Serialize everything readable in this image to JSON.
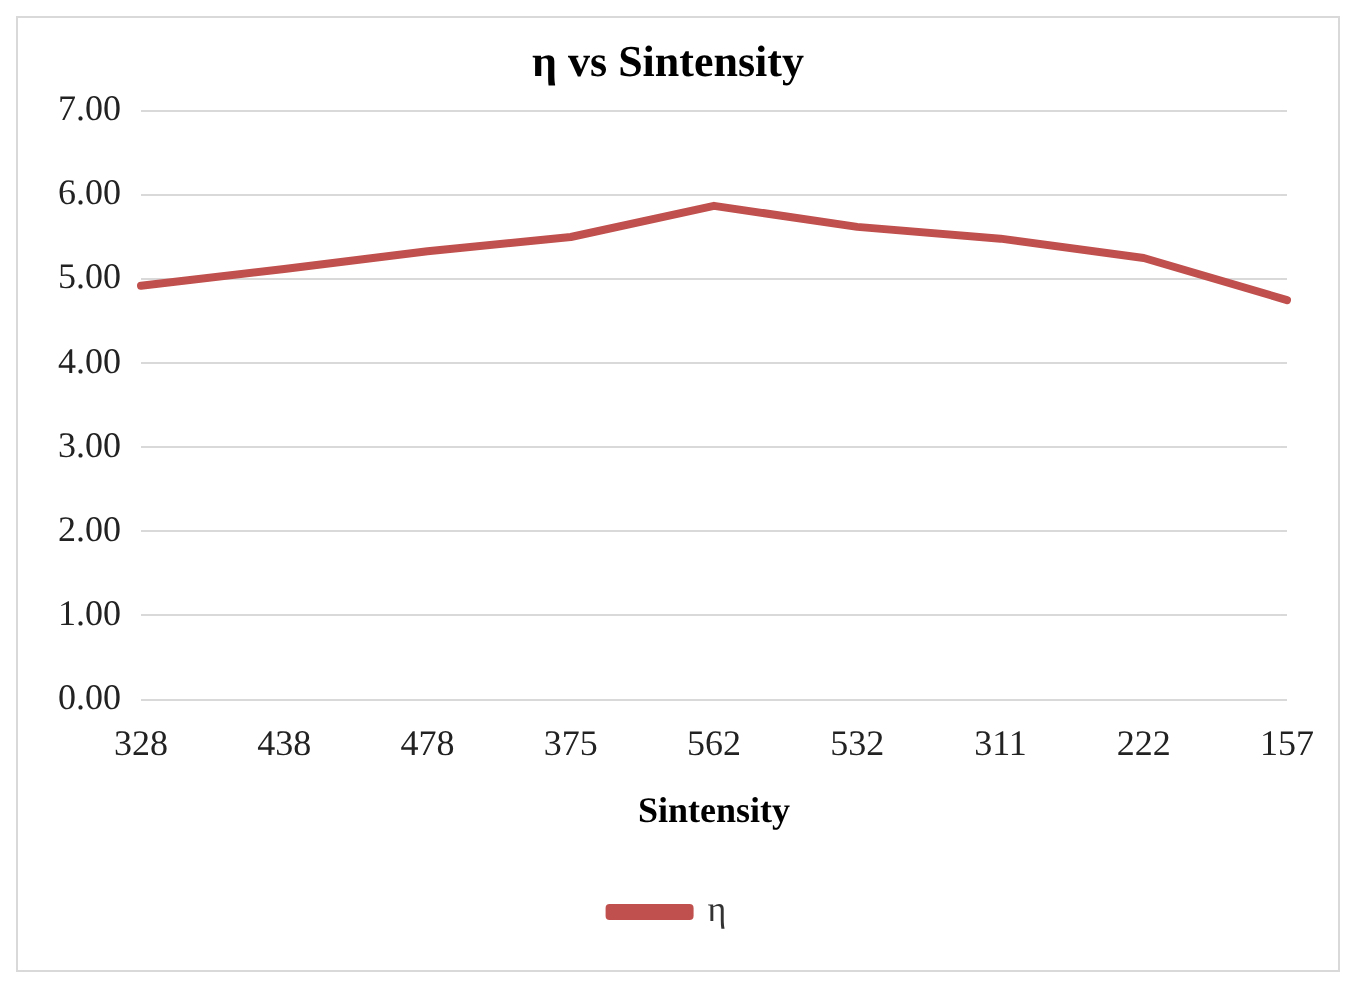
{
  "chart_data": {
    "type": "line",
    "title": "η vs Sintensity",
    "xlabel": "Sintensity",
    "categories": [
      "328",
      "438",
      "478",
      "375",
      "562",
      "532",
      "311",
      "222",
      "157"
    ],
    "series": [
      {
        "name": "η",
        "color": "#c0504d",
        "values": [
          4.92,
          5.12,
          5.33,
          5.5,
          5.87,
          5.62,
          5.48,
          5.25,
          4.75
        ]
      }
    ],
    "ylim": [
      0,
      7
    ],
    "yticks": [
      {
        "value": 0,
        "label": "0.00"
      },
      {
        "value": 1,
        "label": "1.00"
      },
      {
        "value": 2,
        "label": "2.00"
      },
      {
        "value": 3,
        "label": "3.00"
      },
      {
        "value": 4,
        "label": "4.00"
      },
      {
        "value": 5,
        "label": "5.00"
      },
      {
        "value": 6,
        "label": "6.00"
      },
      {
        "value": 7,
        "label": "7.00"
      }
    ],
    "grid": "y",
    "legend": "bottom",
    "marker": "none",
    "line_style": "solid"
  }
}
